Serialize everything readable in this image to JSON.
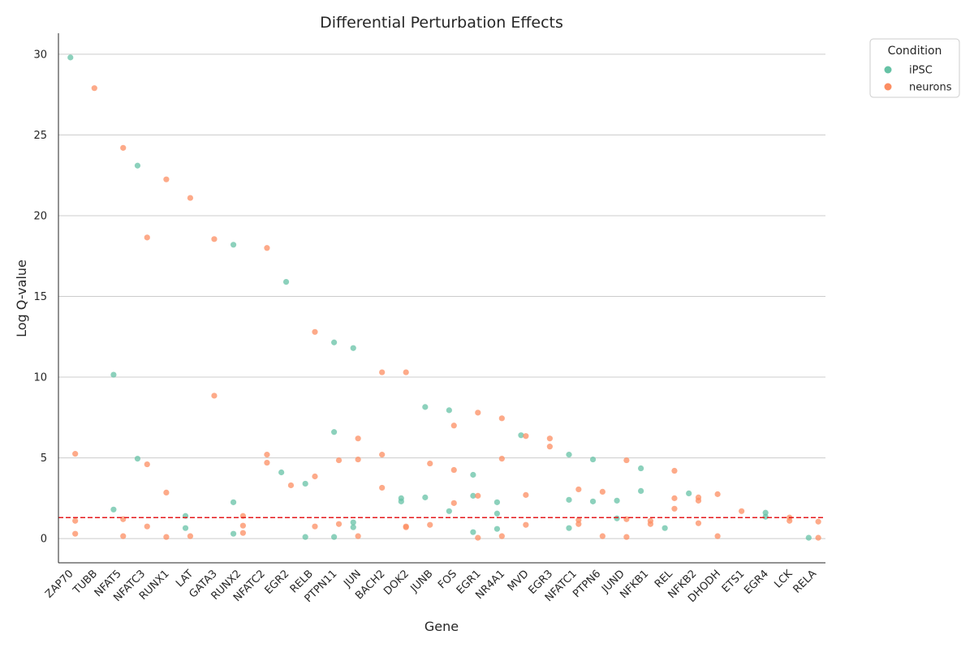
{
  "chart_data": {
    "type": "scatter",
    "title": "Differential Perturbation Effects",
    "xlabel": "Gene",
    "ylabel": "Log Q-value",
    "categories": [
      "ZAP70",
      "TUBB",
      "NFAT5",
      "NFATC3",
      "RUNX1",
      "LAT",
      "GATA3",
      "RUNX2",
      "NFATC2",
      "EGR2",
      "RELB",
      "PTPN11",
      "JUN",
      "BACH2",
      "DOK2",
      "JUNB",
      "FOS",
      "EGR1",
      "NR4A1",
      "MVD",
      "EGR3",
      "NFATC1",
      "PTPN6",
      "JUND",
      "NFKB1",
      "REL",
      "NFKB2",
      "DHODH",
      "ETS1",
      "EGR4",
      "LCK",
      "RELA"
    ],
    "ylim": [
      -1.5,
      31.3
    ],
    "yticks": [
      0,
      5,
      10,
      15,
      20,
      25,
      30
    ],
    "grid": "horizontal",
    "threshold": {
      "value": 1.3,
      "color": "#e41a1c",
      "style": "dashed"
    },
    "legend": {
      "title": "Condition",
      "placement": "outside-top-right"
    },
    "series": [
      {
        "name": "iPSC",
        "color": "#66c2a5",
        "points": [
          {
            "gene": "ZAP70",
            "jitter": 0.0,
            "y": 29.8
          },
          {
            "gene": "NFAT5",
            "jitter": -0.4,
            "y": 10.15
          },
          {
            "gene": "NFAT5",
            "jitter": -0.4,
            "y": 1.8
          },
          {
            "gene": "NFATC3",
            "jitter": -0.4,
            "y": 23.1
          },
          {
            "gene": "NFATC3",
            "jitter": -0.4,
            "y": 4.95
          },
          {
            "gene": "LAT",
            "jitter": -0.4,
            "y": 1.4
          },
          {
            "gene": "LAT",
            "jitter": -0.4,
            "y": 0.65
          },
          {
            "gene": "RUNX2",
            "jitter": -0.4,
            "y": 18.2
          },
          {
            "gene": "RUNX2",
            "jitter": -0.4,
            "y": 2.25
          },
          {
            "gene": "RUNX2",
            "jitter": -0.4,
            "y": 0.3
          },
          {
            "gene": "EGR2",
            "jitter": -0.4,
            "y": 4.1
          },
          {
            "gene": "EGR2",
            "jitter": 0.0,
            "y": 15.9
          },
          {
            "gene": "RELB",
            "jitter": -0.4,
            "y": 3.4
          },
          {
            "gene": "RELB",
            "jitter": -0.4,
            "y": 0.1
          },
          {
            "gene": "PTPN11",
            "jitter": 0.0,
            "y": 12.15
          },
          {
            "gene": "PTPN11",
            "jitter": 0.0,
            "y": 6.6
          },
          {
            "gene": "PTPN11",
            "jitter": 0.0,
            "y": 0.1
          },
          {
            "gene": "JUN",
            "jitter": -0.4,
            "y": 11.8
          },
          {
            "gene": "JUN",
            "jitter": -0.4,
            "y": 1.0
          },
          {
            "gene": "JUN",
            "jitter": -0.4,
            "y": 0.7
          },
          {
            "gene": "DOK2",
            "jitter": -0.4,
            "y": 2.5
          },
          {
            "gene": "DOK2",
            "jitter": -0.4,
            "y": 2.3
          },
          {
            "gene": "JUNB",
            "jitter": -0.4,
            "y": 8.15
          },
          {
            "gene": "JUNB",
            "jitter": -0.4,
            "y": 2.55
          },
          {
            "gene": "FOS",
            "jitter": -0.4,
            "y": 7.95
          },
          {
            "gene": "FOS",
            "jitter": -0.4,
            "y": 1.7
          },
          {
            "gene": "EGR1",
            "jitter": -0.4,
            "y": 3.95
          },
          {
            "gene": "EGR1",
            "jitter": -0.4,
            "y": 2.65
          },
          {
            "gene": "EGR1",
            "jitter": -0.4,
            "y": 0.4
          },
          {
            "gene": "NR4A1",
            "jitter": -0.4,
            "y": 2.25
          },
          {
            "gene": "NR4A1",
            "jitter": -0.4,
            "y": 1.55
          },
          {
            "gene": "NR4A1",
            "jitter": -0.4,
            "y": 0.6
          },
          {
            "gene": "MVD",
            "jitter": -0.4,
            "y": 6.4
          },
          {
            "gene": "NFATC1",
            "jitter": -0.4,
            "y": 5.2
          },
          {
            "gene": "NFATC1",
            "jitter": -0.4,
            "y": 2.4
          },
          {
            "gene": "NFATC1",
            "jitter": -0.4,
            "y": 0.65
          },
          {
            "gene": "PTPN6",
            "jitter": -0.4,
            "y": 4.9
          },
          {
            "gene": "PTPN6",
            "jitter": -0.4,
            "y": 2.3
          },
          {
            "gene": "JUND",
            "jitter": -0.4,
            "y": 2.35
          },
          {
            "gene": "JUND",
            "jitter": -0.4,
            "y": 1.25
          },
          {
            "gene": "NFKB1",
            "jitter": -0.4,
            "y": 4.35
          },
          {
            "gene": "NFKB1",
            "jitter": -0.4,
            "y": 2.95
          },
          {
            "gene": "REL",
            "jitter": -0.4,
            "y": 0.65
          },
          {
            "gene": "NFKB2",
            "jitter": -0.4,
            "y": 2.8
          },
          {
            "gene": "EGR4",
            "jitter": 0.0,
            "y": 1.6
          },
          {
            "gene": "EGR4",
            "jitter": 0.0,
            "y": 1.35
          },
          {
            "gene": "RELA",
            "jitter": -0.4,
            "y": 0.05
          }
        ]
      },
      {
        "name": "neurons",
        "color": "#fc8d62",
        "points": [
          {
            "gene": "ZAP70",
            "jitter": 0.4,
            "y": 5.25
          },
          {
            "gene": "ZAP70",
            "jitter": 0.4,
            "y": 1.1
          },
          {
            "gene": "ZAP70",
            "jitter": 0.4,
            "y": 0.3
          },
          {
            "gene": "TUBB",
            "jitter": 0.0,
            "y": 27.9
          },
          {
            "gene": "NFAT5",
            "jitter": 0.4,
            "y": 24.2
          },
          {
            "gene": "NFAT5",
            "jitter": 0.4,
            "y": 1.2
          },
          {
            "gene": "NFAT5",
            "jitter": 0.4,
            "y": 0.15
          },
          {
            "gene": "NFATC3",
            "jitter": 0.4,
            "y": 18.65
          },
          {
            "gene": "NFATC3",
            "jitter": 0.4,
            "y": 4.6
          },
          {
            "gene": "NFATC3",
            "jitter": 0.4,
            "y": 0.75
          },
          {
            "gene": "RUNX1",
            "jitter": 0.0,
            "y": 22.25
          },
          {
            "gene": "RUNX1",
            "jitter": 0.0,
            "y": 2.85
          },
          {
            "gene": "RUNX1",
            "jitter": 0.0,
            "y": 0.1
          },
          {
            "gene": "LAT",
            "jitter": 0.0,
            "y": 21.1
          },
          {
            "gene": "LAT",
            "jitter": 0.0,
            "y": 0.15
          },
          {
            "gene": "GATA3",
            "jitter": 0.0,
            "y": 18.55
          },
          {
            "gene": "GATA3",
            "jitter": 0.0,
            "y": 8.85
          },
          {
            "gene": "RUNX2",
            "jitter": 0.4,
            "y": 1.4
          },
          {
            "gene": "RUNX2",
            "jitter": 0.4,
            "y": 0.8
          },
          {
            "gene": "RUNX2",
            "jitter": 0.4,
            "y": 0.35
          },
          {
            "gene": "NFATC2",
            "jitter": 0.4,
            "y": 18.0
          },
          {
            "gene": "NFATC2",
            "jitter": 0.4,
            "y": 5.2
          },
          {
            "gene": "NFATC2",
            "jitter": 0.4,
            "y": 4.7
          },
          {
            "gene": "EGR2",
            "jitter": 0.4,
            "y": 3.3
          },
          {
            "gene": "RELB",
            "jitter": 0.4,
            "y": 12.8
          },
          {
            "gene": "RELB",
            "jitter": 0.4,
            "y": 3.85
          },
          {
            "gene": "RELB",
            "jitter": 0.4,
            "y": 0.75
          },
          {
            "gene": "PTPN11",
            "jitter": 0.4,
            "y": 4.85
          },
          {
            "gene": "PTPN11",
            "jitter": 0.4,
            "y": 0.9
          },
          {
            "gene": "JUN",
            "jitter": 0.0,
            "y": 6.2
          },
          {
            "gene": "JUN",
            "jitter": 0.0,
            "y": 4.9
          },
          {
            "gene": "JUN",
            "jitter": 0.0,
            "y": 0.15
          },
          {
            "gene": "BACH2",
            "jitter": 0.0,
            "y": 10.3
          },
          {
            "gene": "BACH2",
            "jitter": 0.0,
            "y": 5.2
          },
          {
            "gene": "BACH2",
            "jitter": 0.0,
            "y": 3.15
          },
          {
            "gene": "DOK2",
            "jitter": 0.0,
            "y": 10.3
          },
          {
            "gene": "DOK2",
            "jitter": 0.0,
            "y": 0.75
          },
          {
            "gene": "DOK2",
            "jitter": 0.0,
            "y": 0.7
          },
          {
            "gene": "JUNB",
            "jitter": 0.0,
            "y": 4.65
          },
          {
            "gene": "JUNB",
            "jitter": 0.0,
            "y": 0.85
          },
          {
            "gene": "FOS",
            "jitter": 0.0,
            "y": 7.0
          },
          {
            "gene": "FOS",
            "jitter": 0.0,
            "y": 4.25
          },
          {
            "gene": "FOS",
            "jitter": 0.0,
            "y": 2.2
          },
          {
            "gene": "EGR1",
            "jitter": 0.0,
            "y": 7.8
          },
          {
            "gene": "EGR1",
            "jitter": 0.0,
            "y": 2.65
          },
          {
            "gene": "EGR1",
            "jitter": 0.0,
            "y": 0.05
          },
          {
            "gene": "NR4A1",
            "jitter": 0.0,
            "y": 7.45
          },
          {
            "gene": "NR4A1",
            "jitter": 0.0,
            "y": 4.95
          },
          {
            "gene": "NR4A1",
            "jitter": 0.0,
            "y": 0.15
          },
          {
            "gene": "MVD",
            "jitter": 0.0,
            "y": 6.35
          },
          {
            "gene": "MVD",
            "jitter": 0.0,
            "y": 2.7
          },
          {
            "gene": "MVD",
            "jitter": 0.0,
            "y": 0.85
          },
          {
            "gene": "EGR3",
            "jitter": 0.0,
            "y": 6.2
          },
          {
            "gene": "EGR3",
            "jitter": 0.0,
            "y": 5.7
          },
          {
            "gene": "NFATC1",
            "jitter": 0.4,
            "y": 3.05
          },
          {
            "gene": "NFATC1",
            "jitter": 0.4,
            "y": 1.15
          },
          {
            "gene": "NFATC1",
            "jitter": 0.4,
            "y": 0.9
          },
          {
            "gene": "PTPN6",
            "jitter": 0.4,
            "y": 2.9
          },
          {
            "gene": "PTPN6",
            "jitter": 0.4,
            "y": 0.15
          },
          {
            "gene": "JUND",
            "jitter": 0.4,
            "y": 4.85
          },
          {
            "gene": "JUND",
            "jitter": 0.4,
            "y": 1.2
          },
          {
            "gene": "JUND",
            "jitter": 0.4,
            "y": 0.1
          },
          {
            "gene": "NFKB1",
            "jitter": 0.4,
            "y": 1.1
          },
          {
            "gene": "NFKB1",
            "jitter": 0.4,
            "y": 0.9
          },
          {
            "gene": "REL",
            "jitter": 0.4,
            "y": 4.2
          },
          {
            "gene": "REL",
            "jitter": 0.4,
            "y": 2.5
          },
          {
            "gene": "REL",
            "jitter": 0.4,
            "y": 1.85
          },
          {
            "gene": "NFKB2",
            "jitter": 0.4,
            "y": 2.55
          },
          {
            "gene": "NFKB2",
            "jitter": 0.4,
            "y": 2.35
          },
          {
            "gene": "NFKB2",
            "jitter": 0.4,
            "y": 0.95
          },
          {
            "gene": "DHODH",
            "jitter": 0.0,
            "y": 2.75
          },
          {
            "gene": "DHODH",
            "jitter": 0.0,
            "y": 0.15
          },
          {
            "gene": "ETS1",
            "jitter": 0.0,
            "y": 1.7
          },
          {
            "gene": "LCK",
            "jitter": 0.0,
            "y": 1.3
          },
          {
            "gene": "LCK",
            "jitter": 0.0,
            "y": 1.1
          },
          {
            "gene": "RELA",
            "jitter": 0.4,
            "y": 1.05
          },
          {
            "gene": "RELA",
            "jitter": 0.4,
            "y": 0.05
          }
        ]
      }
    ]
  }
}
